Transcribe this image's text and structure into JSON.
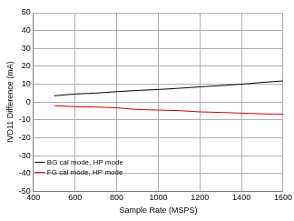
{
  "chart_data": {
    "type": "line",
    "x_label": "Sample Rate (MSPS)",
    "y_label": "IVD11 Difference (mA)",
    "x": [
      500,
      600,
      700,
      800,
      900,
      1000,
      1100,
      1200,
      1300,
      1400,
      1500,
      1600
    ],
    "series": [
      {
        "name": "BG cal mode, HP mode",
        "color": "#000000",
        "values": [
          3.5,
          4.5,
          5,
          5.8,
          6.5,
          7,
          7.7,
          8.5,
          9.2,
          10,
          11,
          11.8
        ]
      },
      {
        "name": "FG cal mode, HP mode",
        "color": "#cc0000",
        "values": [
          -2,
          -2.6,
          -2.8,
          -3.2,
          -4.2,
          -4.5,
          -4.8,
          -5.5,
          -5.8,
          -6.2,
          -6.6,
          -6.8
        ]
      }
    ],
    "xlim": [
      400,
      1600
    ],
    "xticks": [
      400,
      600,
      800,
      1000,
      1200,
      1400,
      1600
    ],
    "ylim": [
      -50,
      50
    ],
    "yticks": [
      -50,
      -40,
      -30,
      -20,
      -10,
      0,
      10,
      20,
      30,
      40,
      50
    ],
    "grid": true,
    "legend": "upper right"
  }
}
